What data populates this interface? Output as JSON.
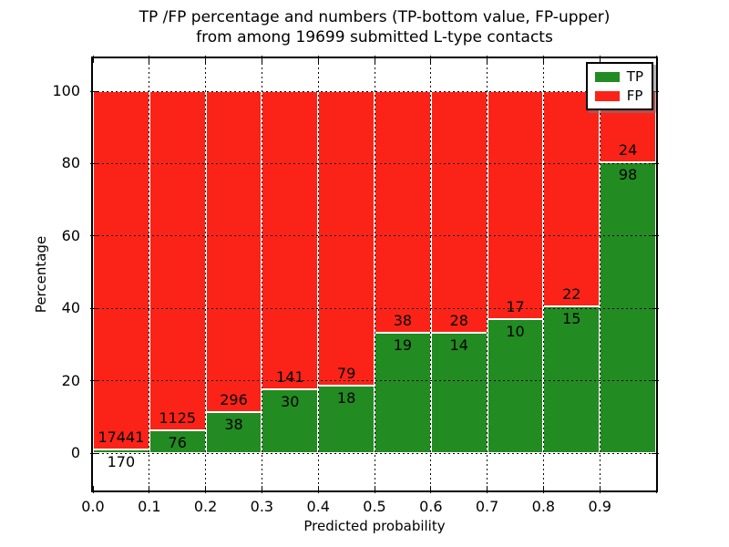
{
  "title": {
    "line1": "TP /FP percentage and numbers (TP-bottom value, FP-upper)",
    "line2": "from among 19699 submitted L-type contacts"
  },
  "chart_data": {
    "type": "bar",
    "subtype": "stacked-percentage-histogram",
    "title": "TP /FP percentage and numbers (TP-bottom value, FP-upper) from among 19699 submitted L-type contacts",
    "xlabel": "Predicted probability",
    "ylabel": "Percentage",
    "total_submitted": 19699,
    "bins": [
      "0.0-0.1",
      "0.1-0.2",
      "0.2-0.3",
      "0.3-0.4",
      "0.4-0.5",
      "0.5-0.6",
      "0.6-0.7",
      "0.7-0.8",
      "0.8-0.9",
      "0.9-1.0"
    ],
    "series": [
      {
        "name": "TP",
        "color": "#228b22",
        "counts": [
          170,
          76,
          38,
          30,
          18,
          19,
          14,
          10,
          15,
          98
        ]
      },
      {
        "name": "FP",
        "color": "#fb2318",
        "counts": [
          17441,
          1125,
          296,
          141,
          79,
          38,
          28,
          17,
          22,
          24
        ]
      }
    ],
    "tp_percent": [
      0.97,
      6.33,
      11.38,
      17.54,
      18.56,
      33.33,
      33.33,
      37.04,
      40.54,
      80.33
    ],
    "xticks": [
      "0.0",
      "0.1",
      "0.2",
      "0.3",
      "0.4",
      "0.5",
      "0.6",
      "0.7",
      "0.8",
      "0.9"
    ],
    "yticks": [
      "0",
      "20",
      "40",
      "60",
      "80",
      "100"
    ],
    "xlim": [
      0.0,
      1.0
    ],
    "ylim_percent": [
      0,
      100
    ],
    "grid": "dotted",
    "legend": {
      "position": "upper-right",
      "entries": [
        {
          "label": "TP",
          "color": "#228b22"
        },
        {
          "label": "FP",
          "color": "#fb2318"
        }
      ]
    }
  }
}
